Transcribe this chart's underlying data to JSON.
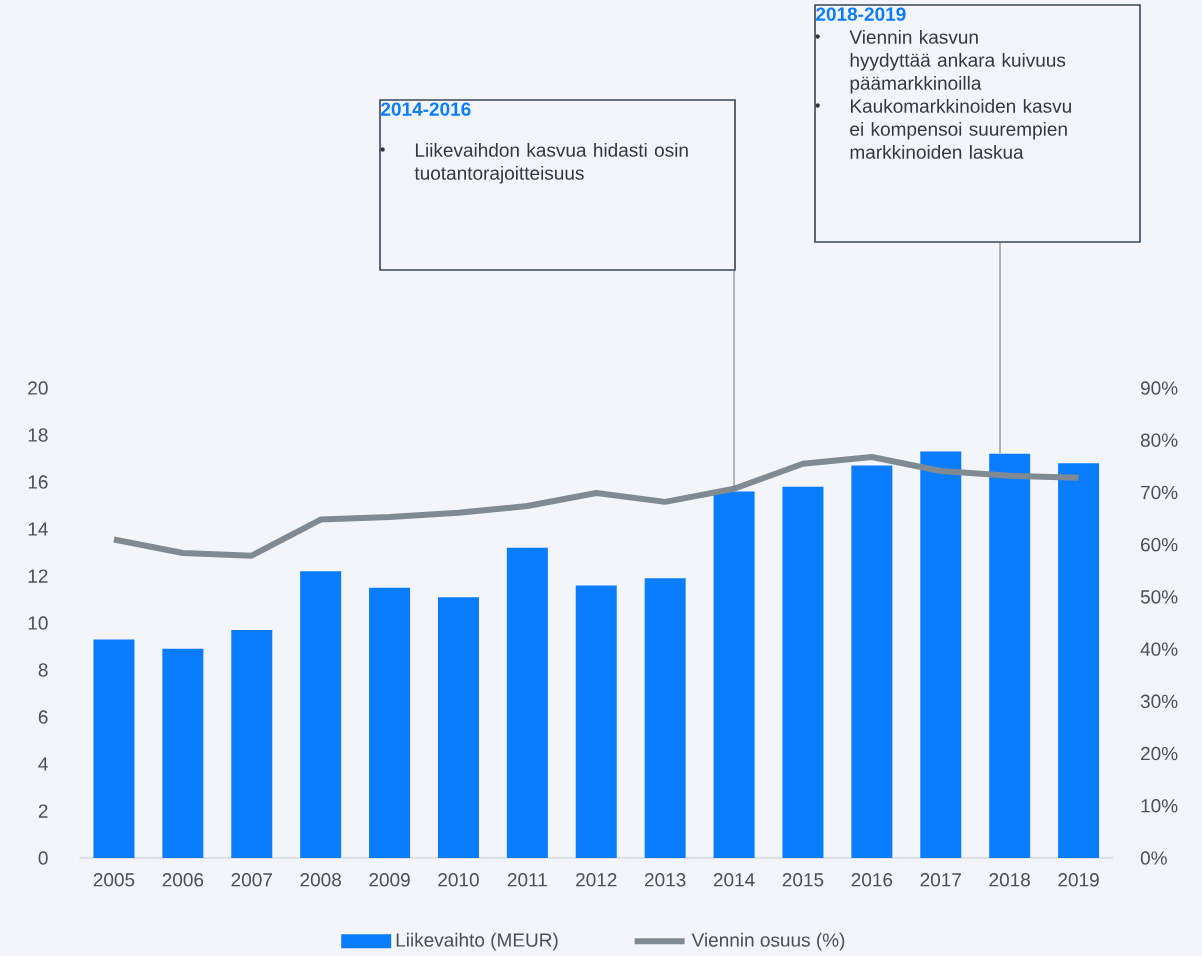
{
  "chart_data": {
    "type": "bar",
    "categories": [
      "2005",
      "2006",
      "2007",
      "2008",
      "2009",
      "2010",
      "2011",
      "2012",
      "2013",
      "2014",
      "2015",
      "2016",
      "2017",
      "2018",
      "2019"
    ],
    "series": [
      {
        "name": "Liikevaihto (MEUR)",
        "color": "#0a7cff",
        "values": [
          9.3,
          8.9,
          9.7,
          12.2,
          11.5,
          11.1,
          13.2,
          11.6,
          11.9,
          15.6,
          15.8,
          16.7,
          17.3,
          17.2,
          16.8
        ]
      },
      {
        "name": "Viennin osuus (%)",
        "type": "line",
        "axis": "y2",
        "color": "#7f8a93",
        "values": [
          61,
          58.4,
          57.9,
          64.8,
          65.3,
          66.1,
          67.4,
          69.9,
          68.2,
          70.7,
          75.5,
          76.8,
          74.1,
          73.2,
          72.8
        ]
      }
    ],
    "ylim": [
      0,
      20
    ],
    "yticks": [
      0,
      2,
      4,
      6,
      8,
      10,
      12,
      14,
      16,
      18,
      20
    ],
    "y2lim": [
      0,
      90
    ],
    "y2ticks": [
      {
        "value": 0,
        "label": "0%"
      },
      {
        "value": 10,
        "label": "10%"
      },
      {
        "value": 20,
        "label": "20%"
      },
      {
        "value": 30,
        "label": "30%"
      },
      {
        "value": 40,
        "label": "40%"
      },
      {
        "value": 50,
        "label": "50%"
      },
      {
        "value": 60,
        "label": "60%"
      },
      {
        "value": 70,
        "label": "70%"
      },
      {
        "value": 80,
        "label": "80%"
      },
      {
        "value": 90,
        "label": "90%"
      }
    ],
    "annotations": [
      "2014-2016",
      "Liikevaihdon kasvua hidasti osin tuotantorajoitteisuus",
      "2018-2019",
      "Viennin kasvun hyydyttää ankara kuivuus päämarkkinoilla",
      "Kaukomarkkinoiden kasvu ei kompensoi suurempien markkinoiden laskua"
    ],
    "legend": "bottom",
    "grid": false,
    "marker": "none",
    "line_style": "solid"
  }
}
